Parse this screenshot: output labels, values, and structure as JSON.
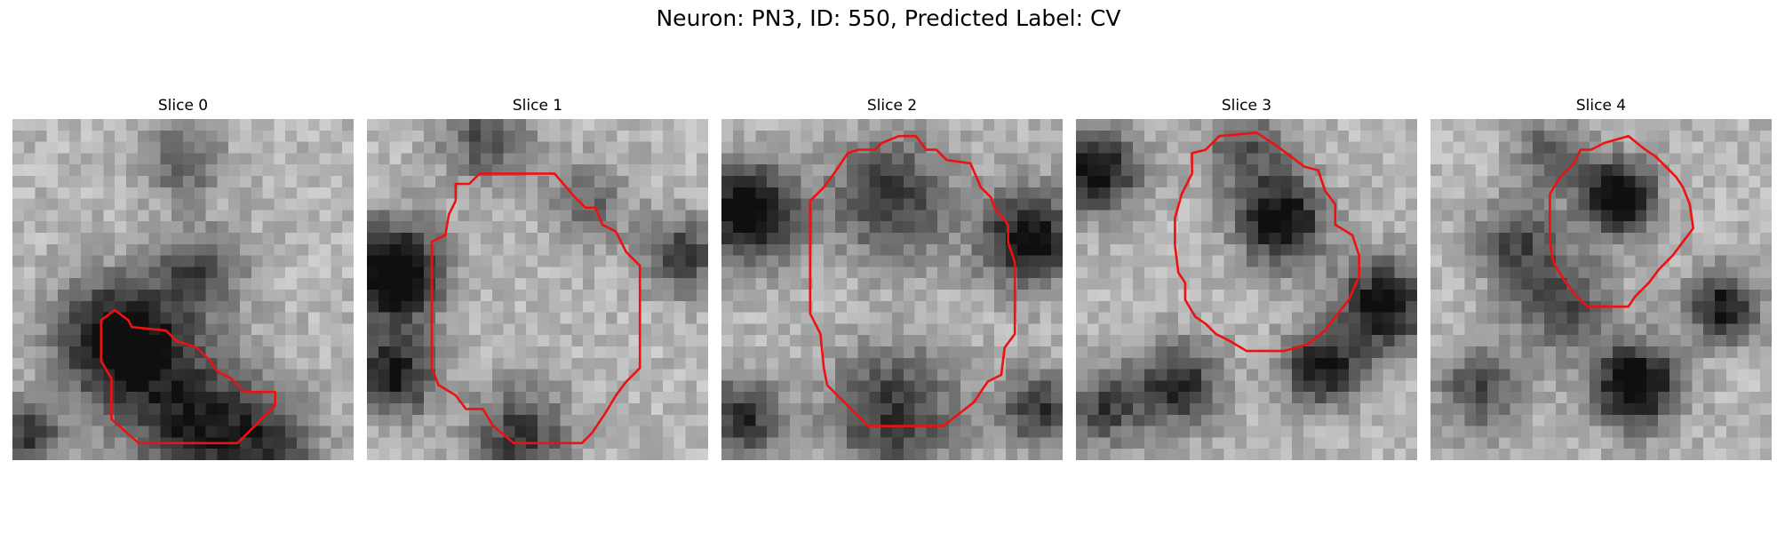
{
  "figure": {
    "title": "Neuron: PN3, ID: 550, Predicted Label: CV",
    "outline_color": "#ee1111",
    "colormap": "gray_r"
  },
  "slices": [
    {
      "title": "Slice 0",
      "seed": 11,
      "blobs": [
        {
          "x": 3.2,
          "y": 6.5,
          "r": 2.2,
          "v": 0.9
        },
        {
          "x": 5.5,
          "y": 9.0,
          "r": 2.6,
          "v": 0.65
        },
        {
          "x": 5.5,
          "y": 4.5,
          "r": 1.6,
          "v": 0.45
        },
        {
          "x": 5.0,
          "y": 1.2,
          "r": 1.4,
          "v": 0.4
        },
        {
          "x": 0.4,
          "y": 9.3,
          "r": 1.3,
          "v": 0.55
        },
        {
          "x": 7.8,
          "y": 9.5,
          "r": 1.6,
          "v": 0.4
        }
      ],
      "outline": [
        [
          2.6,
          5.9
        ],
        [
          3.0,
          5.6
        ],
        [
          3.4,
          5.9
        ],
        [
          3.5,
          6.1
        ],
        [
          4.5,
          6.2
        ],
        [
          4.8,
          6.5
        ],
        [
          5.4,
          6.7
        ],
        [
          5.8,
          7.1
        ],
        [
          6.0,
          7.4
        ],
        [
          6.4,
          7.6
        ],
        [
          6.8,
          8.0
        ],
        [
          7.7,
          8.0
        ],
        [
          7.7,
          8.4
        ],
        [
          6.6,
          9.5
        ],
        [
          3.7,
          9.5
        ],
        [
          2.9,
          8.8
        ],
        [
          2.9,
          7.6
        ],
        [
          2.6,
          7.1
        ],
        [
          2.6,
          6.3
        ]
      ]
    },
    {
      "title": "Slice 1",
      "seed": 23,
      "blobs": [
        {
          "x": 0.8,
          "y": 4.5,
          "r": 1.8,
          "v": 0.95
        },
        {
          "x": 0.8,
          "y": 7.5,
          "r": 1.5,
          "v": 0.7
        },
        {
          "x": 4.5,
          "y": 9.3,
          "r": 1.8,
          "v": 0.55
        },
        {
          "x": 9.2,
          "y": 4.0,
          "r": 1.4,
          "v": 0.55
        },
        {
          "x": 3.5,
          "y": 0.6,
          "r": 1.6,
          "v": 0.45
        },
        {
          "x": 6.5,
          "y": 2.5,
          "r": 1.5,
          "v": 0.35
        }
      ],
      "outline": [
        [
          2.6,
          1.9
        ],
        [
          3.0,
          1.9
        ],
        [
          3.3,
          1.6
        ],
        [
          5.5,
          1.6
        ],
        [
          6.1,
          2.3
        ],
        [
          6.4,
          2.6
        ],
        [
          6.7,
          2.6
        ],
        [
          6.9,
          3.1
        ],
        [
          7.3,
          3.3
        ],
        [
          7.6,
          3.9
        ],
        [
          8.0,
          4.3
        ],
        [
          8.0,
          7.3
        ],
        [
          7.6,
          7.7
        ],
        [
          7.3,
          8.1
        ],
        [
          7.0,
          8.6
        ],
        [
          6.6,
          9.2
        ],
        [
          6.3,
          9.5
        ],
        [
          4.3,
          9.5
        ],
        [
          3.7,
          9.0
        ],
        [
          3.4,
          8.5
        ],
        [
          2.9,
          8.5
        ],
        [
          2.6,
          8.1
        ],
        [
          2.1,
          7.8
        ],
        [
          1.9,
          7.3
        ],
        [
          1.9,
          3.6
        ],
        [
          2.3,
          3.4
        ],
        [
          2.4,
          2.8
        ],
        [
          2.6,
          2.4
        ]
      ]
    },
    {
      "title": "Slice 2",
      "seed": 37,
      "blobs": [
        {
          "x": 0.8,
          "y": 2.7,
          "r": 1.8,
          "v": 0.85
        },
        {
          "x": 9.0,
          "y": 3.5,
          "r": 1.8,
          "v": 0.75
        },
        {
          "x": 5.0,
          "y": 2.3,
          "r": 2.2,
          "v": 0.55
        },
        {
          "x": 5.0,
          "y": 8.6,
          "r": 2.4,
          "v": 0.55
        },
        {
          "x": 0.6,
          "y": 8.8,
          "r": 1.5,
          "v": 0.6
        },
        {
          "x": 9.3,
          "y": 8.5,
          "r": 1.4,
          "v": 0.55
        }
      ],
      "outline": [
        [
          3.7,
          1.0
        ],
        [
          4.0,
          0.9
        ],
        [
          4.5,
          0.9
        ],
        [
          4.7,
          0.7
        ],
        [
          5.2,
          0.5
        ],
        [
          5.7,
          0.5
        ],
        [
          6.0,
          0.9
        ],
        [
          6.3,
          0.9
        ],
        [
          6.6,
          1.2
        ],
        [
          7.3,
          1.3
        ],
        [
          7.6,
          2.0
        ],
        [
          7.9,
          2.3
        ],
        [
          8.0,
          2.6
        ],
        [
          8.4,
          3.1
        ],
        [
          8.4,
          3.6
        ],
        [
          8.6,
          4.2
        ],
        [
          8.6,
          6.3
        ],
        [
          8.3,
          6.7
        ],
        [
          8.2,
          7.5
        ],
        [
          7.8,
          7.7
        ],
        [
          7.4,
          8.3
        ],
        [
          6.5,
          9.0
        ],
        [
          4.3,
          9.0
        ],
        [
          3.7,
          8.4
        ],
        [
          3.1,
          7.8
        ],
        [
          3.0,
          7.3
        ],
        [
          2.9,
          6.3
        ],
        [
          2.6,
          5.7
        ],
        [
          2.6,
          2.4
        ],
        [
          3.0,
          2.0
        ],
        [
          3.3,
          1.6
        ]
      ]
    },
    {
      "title": "Slice 3",
      "seed": 53,
      "blobs": [
        {
          "x": 6.0,
          "y": 3.0,
          "r": 1.6,
          "v": 0.8
        },
        {
          "x": 0.6,
          "y": 1.5,
          "r": 1.6,
          "v": 0.75
        },
        {
          "x": 9.0,
          "y": 5.5,
          "r": 1.7,
          "v": 0.75
        },
        {
          "x": 7.2,
          "y": 7.3,
          "r": 1.4,
          "v": 0.7
        },
        {
          "x": 3.0,
          "y": 7.8,
          "r": 1.6,
          "v": 0.6
        },
        {
          "x": 5.0,
          "y": 0.8,
          "r": 1.6,
          "v": 0.4
        },
        {
          "x": 0.8,
          "y": 8.5,
          "r": 1.4,
          "v": 0.5
        }
      ],
      "outline": [
        [
          3.4,
          1.0
        ],
        [
          3.8,
          0.9
        ],
        [
          4.2,
          0.5
        ],
        [
          5.3,
          0.4
        ],
        [
          5.9,
          0.8
        ],
        [
          6.3,
          1.1
        ],
        [
          6.7,
          1.4
        ],
        [
          7.1,
          1.5
        ],
        [
          7.3,
          2.1
        ],
        [
          7.6,
          2.5
        ],
        [
          7.6,
          3.1
        ],
        [
          8.1,
          3.4
        ],
        [
          8.3,
          4.0
        ],
        [
          8.3,
          4.6
        ],
        [
          8.0,
          5.3
        ],
        [
          7.6,
          5.8
        ],
        [
          7.3,
          6.2
        ],
        [
          6.8,
          6.6
        ],
        [
          6.1,
          6.8
        ],
        [
          5.0,
          6.8
        ],
        [
          4.5,
          6.5
        ],
        [
          4.1,
          6.3
        ],
        [
          3.8,
          6.0
        ],
        [
          3.5,
          5.8
        ],
        [
          3.2,
          5.3
        ],
        [
          3.2,
          4.8
        ],
        [
          3.0,
          4.5
        ],
        [
          2.9,
          3.7
        ],
        [
          2.9,
          2.9
        ],
        [
          3.1,
          2.2
        ],
        [
          3.4,
          1.6
        ]
      ]
    },
    {
      "title": "Slice 4",
      "seed": 71,
      "blobs": [
        {
          "x": 5.5,
          "y": 2.3,
          "r": 1.4,
          "v": 0.85
        },
        {
          "x": 6.0,
          "y": 7.8,
          "r": 1.6,
          "v": 0.85
        },
        {
          "x": 8.6,
          "y": 5.5,
          "r": 1.3,
          "v": 0.7
        },
        {
          "x": 3.8,
          "y": 5.3,
          "r": 1.8,
          "v": 0.5
        },
        {
          "x": 2.5,
          "y": 3.5,
          "r": 1.5,
          "v": 0.45
        },
        {
          "x": 1.5,
          "y": 8.0,
          "r": 1.6,
          "v": 0.45
        },
        {
          "x": 3.5,
          "y": 1.0,
          "r": 1.3,
          "v": 0.4
        }
      ],
      "outline": [
        [
          4.4,
          0.9
        ],
        [
          4.7,
          0.9
        ],
        [
          5.1,
          0.7
        ],
        [
          5.8,
          0.5
        ],
        [
          6.3,
          0.9
        ],
        [
          6.6,
          1.1
        ],
        [
          6.9,
          1.4
        ],
        [
          7.2,
          1.7
        ],
        [
          7.4,
          2.0
        ],
        [
          7.6,
          2.5
        ],
        [
          7.7,
          3.2
        ],
        [
          7.4,
          3.6
        ],
        [
          7.1,
          4.0
        ],
        [
          6.7,
          4.4
        ],
        [
          6.4,
          4.8
        ],
        [
          6.0,
          5.2
        ],
        [
          5.8,
          5.5
        ],
        [
          4.6,
          5.5
        ],
        [
          4.2,
          5.1
        ],
        [
          3.9,
          4.7
        ],
        [
          3.6,
          4.2
        ],
        [
          3.5,
          3.6
        ],
        [
          3.5,
          2.2
        ],
        [
          3.8,
          1.7
        ],
        [
          4.2,
          1.3
        ]
      ]
    }
  ]
}
